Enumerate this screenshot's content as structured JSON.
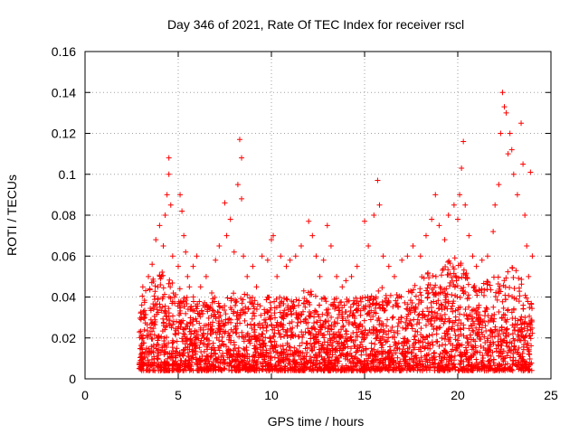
{
  "chart_data": {
    "type": "scatter",
    "title": "Day 346 of 2021, Rate Of TEC Index for receiver rscl",
    "xlabel": "GPS time / hours",
    "ylabel": "ROTI / TECUs",
    "xlim": [
      0,
      25
    ],
    "ylim": [
      0,
      0.16
    ],
    "xticks": [
      0,
      5,
      10,
      15,
      20,
      25
    ],
    "xtick_labels": [
      "0",
      "5",
      "10",
      "15",
      "20",
      "25"
    ],
    "yticks": [
      0,
      0.02,
      0.04,
      0.06,
      0.08,
      0.1,
      0.12,
      0.14,
      0.16
    ],
    "ytick_labels": [
      "0",
      "0.02",
      "0.04",
      "0.06",
      "0.08",
      "0.1",
      "0.12",
      "0.14",
      "0.16"
    ],
    "grid": true,
    "marker": "+",
    "color": "#ff0000",
    "series": [
      {
        "name": "ROTI",
        "points": [
          [
            3.0,
            0.012
          ],
          [
            3.1,
            0.02
          ],
          [
            3.1,
            0.045
          ],
          [
            3.2,
            0.03
          ],
          [
            3.3,
            0.015
          ],
          [
            3.4,
            0.05
          ],
          [
            3.5,
            0.025
          ],
          [
            3.6,
            0.056
          ],
          [
            3.7,
            0.035
          ],
          [
            3.8,
            0.068
          ],
          [
            3.9,
            0.02
          ],
          [
            4.0,
            0.075
          ],
          [
            4.1,
            0.05
          ],
          [
            4.2,
            0.065
          ],
          [
            4.3,
            0.08
          ],
          [
            4.4,
            0.09
          ],
          [
            4.5,
            0.108
          ],
          [
            4.5,
            0.1
          ],
          [
            4.6,
            0.085
          ],
          [
            4.7,
            0.06
          ],
          [
            4.8,
            0.04
          ],
          [
            4.9,
            0.028
          ],
          [
            5.0,
            0.055
          ],
          [
            5.1,
            0.09
          ],
          [
            5.2,
            0.082
          ],
          [
            5.3,
            0.07
          ],
          [
            5.4,
            0.062
          ],
          [
            5.5,
            0.05
          ],
          [
            5.6,
            0.045
          ],
          [
            5.8,
            0.055
          ],
          [
            6.0,
            0.06
          ],
          [
            6.2,
            0.045
          ],
          [
            6.5,
            0.05
          ],
          [
            6.8,
            0.042
          ],
          [
            7.0,
            0.058
          ],
          [
            7.2,
            0.065
          ],
          [
            7.5,
            0.086
          ],
          [
            7.6,
            0.07
          ],
          [
            7.8,
            0.078
          ],
          [
            8.0,
            0.062
          ],
          [
            8.2,
            0.095
          ],
          [
            8.3,
            0.117
          ],
          [
            8.4,
            0.108
          ],
          [
            8.4,
            0.088
          ],
          [
            8.5,
            0.06
          ],
          [
            8.7,
            0.05
          ],
          [
            9.0,
            0.055
          ],
          [
            9.2,
            0.045
          ],
          [
            9.5,
            0.06
          ],
          [
            9.8,
            0.058
          ],
          [
            10.0,
            0.068
          ],
          [
            10.1,
            0.07
          ],
          [
            10.3,
            0.05
          ],
          [
            10.5,
            0.06
          ],
          [
            10.8,
            0.055
          ],
          [
            11.0,
            0.058
          ],
          [
            11.3,
            0.06
          ],
          [
            11.6,
            0.065
          ],
          [
            12.0,
            0.077
          ],
          [
            12.2,
            0.07
          ],
          [
            12.4,
            0.06
          ],
          [
            12.6,
            0.05
          ],
          [
            12.8,
            0.058
          ],
          [
            13.0,
            0.075
          ],
          [
            13.2,
            0.065
          ],
          [
            13.5,
            0.05
          ],
          [
            13.8,
            0.045
          ],
          [
            14.0,
            0.048
          ],
          [
            14.3,
            0.05
          ],
          [
            14.6,
            0.055
          ],
          [
            15.0,
            0.077
          ],
          [
            15.2,
            0.065
          ],
          [
            15.5,
            0.08
          ],
          [
            15.7,
            0.097
          ],
          [
            15.8,
            0.085
          ],
          [
            16.0,
            0.06
          ],
          [
            16.3,
            0.055
          ],
          [
            16.6,
            0.05
          ],
          [
            17.0,
            0.058
          ],
          [
            17.3,
            0.06
          ],
          [
            17.6,
            0.065
          ],
          [
            18.0,
            0.06
          ],
          [
            18.3,
            0.07
          ],
          [
            18.6,
            0.078
          ],
          [
            18.8,
            0.09
          ],
          [
            19.0,
            0.075
          ],
          [
            19.3,
            0.068
          ],
          [
            19.5,
            0.08
          ],
          [
            19.8,
            0.085
          ],
          [
            20.0,
            0.078
          ],
          [
            20.1,
            0.09
          ],
          [
            20.2,
            0.103
          ],
          [
            20.3,
            0.116
          ],
          [
            20.4,
            0.085
          ],
          [
            20.6,
            0.07
          ],
          [
            20.8,
            0.06
          ],
          [
            21.0,
            0.055
          ],
          [
            21.3,
            0.058
          ],
          [
            21.6,
            0.06
          ],
          [
            21.9,
            0.072
          ],
          [
            22.0,
            0.085
          ],
          [
            22.2,
            0.095
          ],
          [
            22.3,
            0.12
          ],
          [
            22.4,
            0.14
          ],
          [
            22.5,
            0.133
          ],
          [
            22.6,
            0.13
          ],
          [
            22.7,
            0.11
          ],
          [
            22.8,
            0.12
          ],
          [
            22.9,
            0.112
          ],
          [
            23.0,
            0.1
          ],
          [
            23.2,
            0.09
          ],
          [
            23.4,
            0.125
          ],
          [
            23.5,
            0.105
          ],
          [
            23.6,
            0.08
          ],
          [
            23.7,
            0.065
          ],
          [
            23.8,
            0.05
          ],
          [
            23.9,
            0.101
          ],
          [
            24.0,
            0.06
          ]
        ]
      }
    ],
    "dense_band": {
      "x_range": [
        2.9,
        24.0
      ],
      "y_floor": 0.004,
      "envelope_x": [
        3,
        4,
        5,
        6,
        7,
        8,
        9,
        10,
        11,
        12,
        13,
        14,
        15,
        16,
        17,
        18,
        19,
        20,
        21,
        22,
        23,
        24
      ],
      "envelope_y": [
        0.04,
        0.055,
        0.045,
        0.04,
        0.04,
        0.045,
        0.04,
        0.04,
        0.04,
        0.045,
        0.04,
        0.04,
        0.04,
        0.045,
        0.04,
        0.05,
        0.055,
        0.06,
        0.045,
        0.05,
        0.055,
        0.04
      ]
    }
  }
}
